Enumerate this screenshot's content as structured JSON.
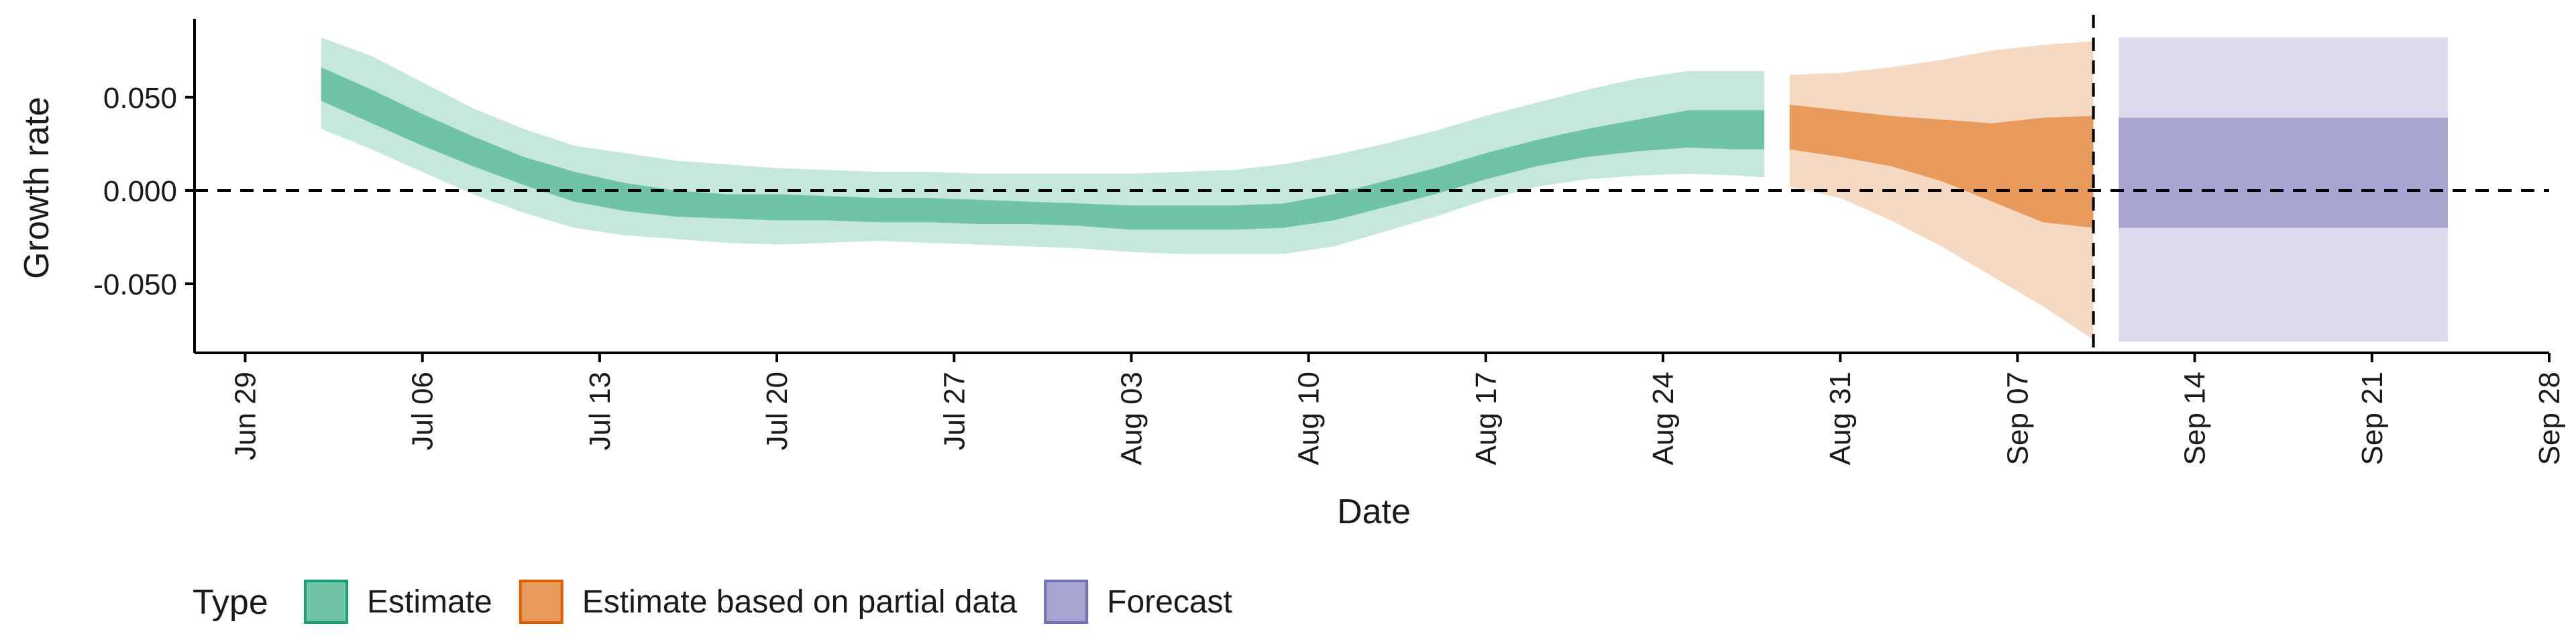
{
  "chart_data": {
    "type": "area",
    "xlabel": "Date",
    "ylabel": "Growth rate",
    "xlim": [
      "2021-06-27",
      "2021-09-28"
    ],
    "ylim": [
      -0.087,
      0.092
    ],
    "x_ticks": [
      {
        "date": "2021-06-29",
        "label": "Jun 29"
      },
      {
        "date": "2021-07-06",
        "label": "Jul 06"
      },
      {
        "date": "2021-07-13",
        "label": "Jul 13"
      },
      {
        "date": "2021-07-20",
        "label": "Jul 20"
      },
      {
        "date": "2021-07-27",
        "label": "Jul 27"
      },
      {
        "date": "2021-08-03",
        "label": "Aug 03"
      },
      {
        "date": "2021-08-10",
        "label": "Aug 10"
      },
      {
        "date": "2021-08-17",
        "label": "Aug 17"
      },
      {
        "date": "2021-08-24",
        "label": "Aug 24"
      },
      {
        "date": "2021-08-31",
        "label": "Aug 31"
      },
      {
        "date": "2021-09-07",
        "label": "Sep 07"
      },
      {
        "date": "2021-09-14",
        "label": "Sep 14"
      },
      {
        "date": "2021-09-21",
        "label": "Sep 21"
      },
      {
        "date": "2021-09-28",
        "label": "Sep 28"
      }
    ],
    "y_ticks": [
      {
        "value": 0.05,
        "label": "0.050"
      },
      {
        "value": 0.0,
        "label": "0.000"
      },
      {
        "value": -0.05,
        "label": "-0.050"
      }
    ],
    "reference_lines": {
      "horizontal_y": 0,
      "vertical_date": "2021-09-10"
    },
    "grid": false,
    "legend": {
      "title": "Type",
      "position": "bottom-left",
      "entries": [
        {
          "label": "Estimate",
          "fill": "#6fc4a6",
          "stroke": "#1b9e77"
        },
        {
          "label": "Estimate based on partial data",
          "fill": "#e89a5c",
          "stroke": "#d95f02"
        },
        {
          "label": "Forecast",
          "fill": "#a8a4d2",
          "stroke": "#7570b3"
        }
      ]
    },
    "series": [
      {
        "name": "Estimate",
        "color": "#1b9e77",
        "inner_color": "#6fc4a6",
        "outer_color": "#c5e7dc",
        "dates": [
          "2021-07-02",
          "2021-07-04",
          "2021-07-06",
          "2021-07-08",
          "2021-07-10",
          "2021-07-12",
          "2021-07-14",
          "2021-07-16",
          "2021-07-18",
          "2021-07-20",
          "2021-07-22",
          "2021-07-24",
          "2021-07-26",
          "2021-07-28",
          "2021-07-30",
          "2021-08-01",
          "2021-08-03",
          "2021-08-05",
          "2021-08-07",
          "2021-08-09",
          "2021-08-11",
          "2021-08-13",
          "2021-08-15",
          "2021-08-17",
          "2021-08-19",
          "2021-08-21",
          "2021-08-23",
          "2021-08-25",
          "2021-08-27",
          "2021-08-28"
        ],
        "lower_90": [
          0.033,
          0.022,
          0.01,
          -0.002,
          -0.012,
          -0.02,
          -0.024,
          -0.026,
          -0.028,
          -0.029,
          -0.028,
          -0.027,
          -0.028,
          -0.029,
          -0.03,
          -0.031,
          -0.033,
          -0.034,
          -0.034,
          -0.034,
          -0.03,
          -0.022,
          -0.014,
          -0.005,
          0.002,
          0.006,
          0.008,
          0.009,
          0.008,
          0.007
        ],
        "lower_50": [
          0.048,
          0.036,
          0.024,
          0.013,
          0.003,
          -0.006,
          -0.011,
          -0.014,
          -0.015,
          -0.016,
          -0.016,
          -0.017,
          -0.017,
          -0.018,
          -0.018,
          -0.019,
          -0.021,
          -0.021,
          -0.021,
          -0.02,
          -0.016,
          -0.009,
          -0.002,
          0.006,
          0.013,
          0.018,
          0.021,
          0.023,
          0.022,
          0.022
        ],
        "upper_50": [
          0.066,
          0.054,
          0.041,
          0.029,
          0.018,
          0.01,
          0.004,
          0.0,
          -0.002,
          -0.002,
          -0.003,
          -0.004,
          -0.004,
          -0.005,
          -0.006,
          -0.007,
          -0.008,
          -0.008,
          -0.008,
          -0.007,
          -0.002,
          0.005,
          0.012,
          0.02,
          0.027,
          0.033,
          0.038,
          0.043,
          0.043,
          0.043
        ],
        "upper_90": [
          0.082,
          0.072,
          0.058,
          0.044,
          0.033,
          0.024,
          0.02,
          0.016,
          0.014,
          0.012,
          0.011,
          0.01,
          0.01,
          0.009,
          0.009,
          0.009,
          0.009,
          0.01,
          0.011,
          0.014,
          0.019,
          0.025,
          0.032,
          0.04,
          0.047,
          0.054,
          0.06,
          0.064,
          0.064,
          0.064
        ]
      },
      {
        "name": "Estimate based on partial data",
        "color": "#d95f02",
        "inner_color": "#e89a5c",
        "outer_color": "#f6d9c2",
        "dates": [
          "2021-08-29",
          "2021-08-31",
          "2021-09-02",
          "2021-09-04",
          "2021-09-06",
          "2021-09-08",
          "2021-09-10"
        ],
        "lower_90": [
          0.002,
          -0.004,
          -0.016,
          -0.03,
          -0.046,
          -0.062,
          -0.08
        ],
        "lower_50": [
          0.022,
          0.018,
          0.013,
          0.005,
          -0.006,
          -0.017,
          -0.02
        ],
        "upper_50": [
          0.046,
          0.043,
          0.04,
          0.038,
          0.036,
          0.039,
          0.04
        ],
        "upper_90": [
          0.062,
          0.063,
          0.066,
          0.07,
          0.075,
          0.078,
          0.08
        ]
      },
      {
        "name": "Forecast",
        "color": "#7570b3",
        "inner_color": "#a8a4d2",
        "outer_color": "#dcdbed",
        "dates": [
          "2021-09-11",
          "2021-09-24"
        ],
        "lower_90": [
          -0.081,
          -0.081
        ],
        "lower_50": [
          -0.02,
          -0.02
        ],
        "upper_50": [
          0.039,
          0.039
        ],
        "upper_90": [
          0.082,
          0.082
        ]
      }
    ]
  }
}
